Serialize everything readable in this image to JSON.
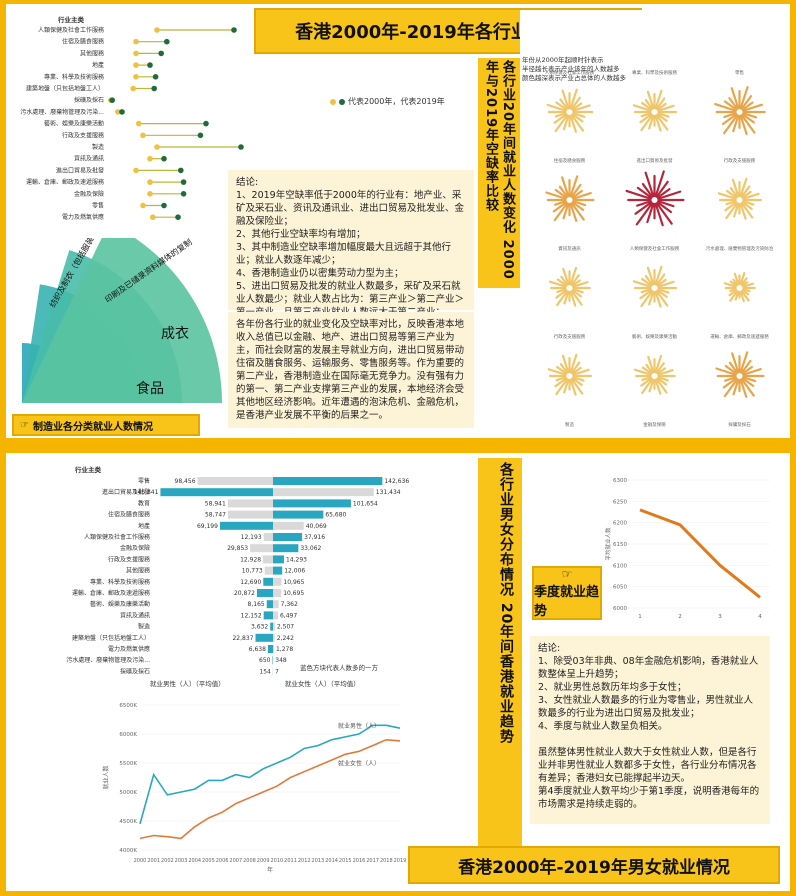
{
  "top": {
    "title": "香港2000年-2019年各行业就业情况",
    "industry_header": "行业主类",
    "dot_legend": "代表2000年，代表2019年",
    "side_title": "各行业20年间就业人数变化 2000年与2019年空缺率比较",
    "sunburst_note": "年份从2000年起顺时针表示\n半径越长表示产业该年的人数越多\n颜色越深表示产业占总体的人数越多",
    "manufacturing_label": "制造业各分类就业人数情况",
    "fan_labels": [
      "食品",
      "成衣",
      "印刷及已储录资料媒体的复制",
      "纺织及制衣（包括服装设计）"
    ],
    "conclusion": "结论:\n1、2019年空缺率低于2000年的行业有：地产业、采矿及采石业、资讯及通讯业、进出口贸易及批发业、金融及保险业；\n2、其他行业空缺率均有增加；\n3、其中制造业空缺率增加幅度最大且远超于其他行业；就业人数逐年减少；\n4、香港制造业仍以密集劳动力型为主；\n5、进出口贸易及批发的就业人数最多，采矿及采石就业人数最少；就业人数占比为：第三产业＞第二产业＞第一产业，且第三产业就业人数远大于第二产业；",
    "analysis": "各年份各行业的就业变化及空缺率对比，反映香港本地收入总值已以金融、地产、进出口贸易等第三产业为主，而社会财富的发展主导就业方向，进出口贸易带动住宿及膳食服务、运输服务、零售服务等。作为重要的第二产业，香港制造业在国际毫无竞争力。没有强有力的第一、第二产业支撑第三产业的发展，本地经济会受其他地区经济影响。近年遭遇的泡沫危机、金融危机，是香港产业发展不平衡的后果之一。",
    "dot_categories": [
      "人類保健及社會工作服務",
      "住宿及膳食服務",
      "其他服務",
      "地產",
      "專業、科學及技術服務",
      "建築地盤（只包括地盤工人）",
      "採礦及採石",
      "污水處理、廢棄物管理及污染...",
      "藝術、娛樂及康樂活動",
      "行政及支援服務",
      "製造",
      "資訊及通訊",
      "進出口貿易及批發",
      "運輸、倉庫、郵政及速遞服務",
      "金融及保險",
      "零售",
      "電力及燃氣供應"
    ],
    "dot_start": [
      0.35,
      0.2,
      0.2,
      0.2,
      0.2,
      0.18,
      0.02,
      0.07,
      0.22,
      0.25,
      0.35,
      0.3,
      0.2,
      0.3,
      0.3,
      0.25,
      0.32
    ],
    "dot_end": [
      0.9,
      0.42,
      0.38,
      0.3,
      0.34,
      0.33,
      0.03,
      0.1,
      0.7,
      0.66,
      0.95,
      0.4,
      0.52,
      0.54,
      0.54,
      0.4,
      0.5
    ],
    "sunbursts": [
      {
        "label": "人類保健及社會工作服務",
        "level": 0.6,
        "color": "#f0c66b"
      },
      {
        "label": "專業、科學及技術服務",
        "level": 0.55,
        "color": "#f0c66b"
      },
      {
        "label": "零售",
        "level": 0.7,
        "color": "#e8a44a"
      },
      {
        "label": "住宿及膳食服務",
        "level": 0.65,
        "color": "#e8a44a"
      },
      {
        "label": "進出口貿易及批發",
        "level": 0.85,
        "color": "#b3263b"
      },
      {
        "label": "行政及支援服務",
        "level": 0.55,
        "color": "#f0c66b"
      },
      {
        "label": "資訊及通訊",
        "level": 0.5,
        "color": "#f0c66b"
      },
      {
        "label": "人類保健及社會工作服務",
        "level": 0.55,
        "color": "#f0c66b"
      },
      {
        "label": "污水處理、廢棄物管理及污染防治",
        "level": 0.3,
        "color": "#f0c66b"
      },
      {
        "label": "行政及支援服務",
        "level": 0.55,
        "color": "#f0c66b"
      },
      {
        "label": "藝術、娛樂及康樂活動",
        "level": 0.5,
        "color": "#f0c66b"
      },
      {
        "label": "運輸、倉庫、郵政及速遞服務",
        "level": 0.65,
        "color": "#e8a44a"
      },
      {
        "label": "製造",
        "level": 0.6,
        "color": "#f0c66b"
      },
      {
        "label": "金融及保險",
        "level": 0.6,
        "color": "#f0c66b"
      },
      {
        "label": "採礦及採石",
        "level": 0.2,
        "color": "#f0c66b"
      },
      {
        "label": "地產",
        "level": 0.55,
        "color": "#f0c66b"
      },
      {
        "label": "電力及燃氣供應",
        "level": 0.35,
        "color": "#f0c66b"
      },
      {
        "label": "建築地盤（只包括地盤工人）",
        "level": 0.55,
        "color": "#f0c66b"
      }
    ]
  },
  "bottom": {
    "title": "香港2000年-2019年男女就业情况",
    "side_title": "各行业男女分布情况 20年间香港就业趋势",
    "industry_header": "行业主类",
    "male_label": "就业男性（人）（平均值）",
    "female_label": "就业女性（人）（平均值）",
    "legend_note": "蓝色方块代表人数多的一方",
    "season_title": "季度就业趋势",
    "conclusion": "结论:\n1、除受03年非典、08年金融危机影响，香港就业人数整体呈上升趋势；\n2、就业男性总数历年均多于女性；\n3、女性就业人数最多的行业为零售业，男性就业人数最多的行业为进出口贸易及批发业；\n4、季度与就业人数呈负相关。\n\n虽然整体男性就业人数大于女性就业人数，但是各行业并非男性就业人数都多于女性，各行业分布情况各有差异；香港妇女已能撑起半边天。\n第4季度就业人数平均少于第1季度，说明香港每年的市场需求是持续走弱的。"
  },
  "chart_data": [
    {
      "type": "bar",
      "title": "",
      "categories": [
        "零售",
        "進出口貿易及批發",
        "教育",
        "住宿及膳食服務",
        "地產",
        "人類保健及社會工作服務",
        "金融及保險",
        "行政及支援服務",
        "其他服務",
        "專業、科學及技術服務",
        "運輸、倉庫、郵政及速遞服務",
        "藝術、娛樂及康樂活動",
        "資訊及通訊",
        "製造",
        "建築地盤（只包括地盤工人）",
        "電力及燃氣供應",
        "污水處理、廢棄物管理及污染...",
        "採礦及採石"
      ],
      "series": [
        {
          "name": "就业男性（人）（平均值）",
          "values": [
            98456,
            146841,
            58941,
            58747,
            69199,
            12193,
            29853,
            12928,
            10773,
            12690,
            20872,
            8165,
            12152,
            3632,
            22837,
            6638,
            650,
            154
          ]
        },
        {
          "name": "就业女性（人）（平均值）",
          "values": [
            142636,
            131434,
            101654,
            65680,
            40069,
            37916,
            33062,
            14293,
            12006,
            10965,
            10695,
            7362,
            6497,
            2507,
            2242,
            1278,
            348,
            7
          ]
        }
      ]
    },
    {
      "type": "line",
      "title": "",
      "x": [
        2000,
        2001,
        2002,
        2003,
        2004,
        2005,
        2006,
        2007,
        2008,
        2009,
        2010,
        2011,
        2012,
        2013,
        2014,
        2015,
        2016,
        2017,
        2018,
        2019
      ],
      "xlabel": "年",
      "ylabel": "就业人数",
      "ylim": [
        4000000,
        6500000
      ],
      "yticks": [
        "4000K",
        "4500K",
        "5000K",
        "5500K",
        "6000K",
        "6500K"
      ],
      "series": [
        {
          "name": "就业男性（人）",
          "values": [
            4450000,
            5300000,
            4950000,
            5000000,
            5050000,
            5200000,
            5200000,
            5300000,
            5250000,
            5400000,
            5500000,
            5600000,
            5750000,
            5800000,
            5900000,
            5950000,
            6000000,
            6150000,
            6150000,
            6100000
          ]
        },
        {
          "name": "就业女性（人）",
          "values": [
            4200000,
            4250000,
            4230000,
            4200000,
            4400000,
            4550000,
            4650000,
            4800000,
            4900000,
            5000000,
            5100000,
            5250000,
            5350000,
            5450000,
            5550000,
            5650000,
            5700000,
            5800000,
            5900000,
            5880000
          ]
        }
      ]
    },
    {
      "type": "line",
      "title": "",
      "x": [
        1,
        2,
        3,
        4
      ],
      "ylabel": "平均就业人数",
      "ylim": [
        6000,
        6300
      ],
      "yticks": [
        "6000",
        "6050",
        "6100",
        "6150",
        "6200",
        "6250",
        "6300"
      ],
      "series": [
        {
          "values": [
            6230,
            6195,
            6100,
            6025
          ]
        }
      ]
    }
  ]
}
